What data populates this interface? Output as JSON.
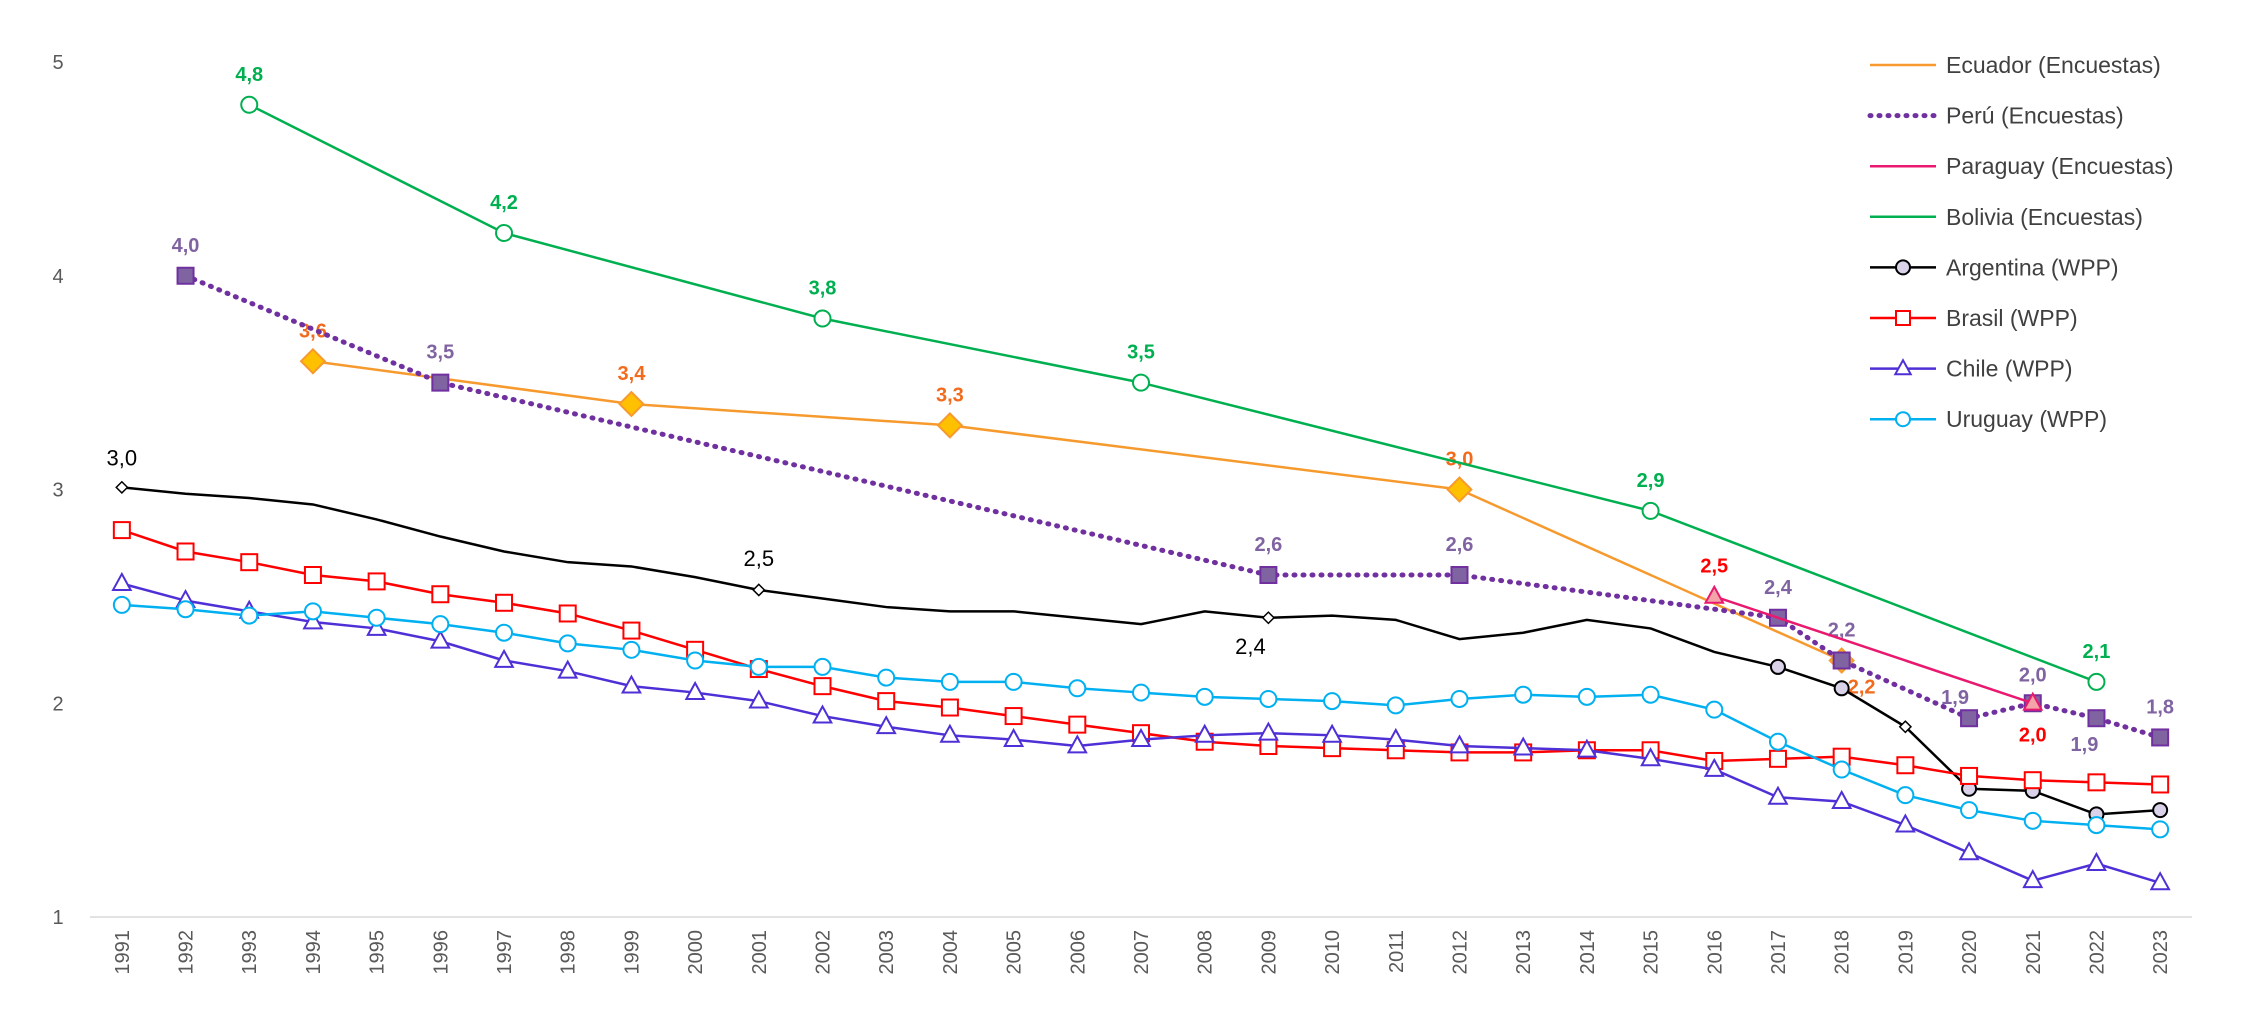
{
  "chart_data": {
    "type": "line",
    "xlim": [
      1990.5,
      2023.5
    ],
    "xticks": [
      1991,
      1992,
      1993,
      1994,
      1995,
      1996,
      1997,
      1998,
      1999,
      2000,
      2001,
      2002,
      2003,
      2004,
      2005,
      2006,
      2007,
      2008,
      2009,
      2010,
      2011,
      2012,
      2013,
      2014,
      2015,
      2016,
      2017,
      2018,
      2019,
      2020,
      2021,
      2022,
      2023
    ],
    "ylim": [
      1,
      5
    ],
    "yticks": [
      1,
      2,
      3,
      4,
      5
    ],
    "grid": false,
    "legend": "top-right",
    "series": [
      {
        "name": "Ecuador (Encuestas)",
        "color": "#F79A2E",
        "marker": "diamond",
        "marker_fill": "#FFC000",
        "label_color": "#F26B1D",
        "x": [
          1994,
          1999,
          2004,
          2012,
          2018
        ],
        "values": [
          3.6,
          3.4,
          3.3,
          3.0,
          2.2
        ],
        "value_labels": [
          "3,6",
          "3,4",
          "3,3",
          "3,0",
          "2,2"
        ]
      },
      {
        "name": "Perú (Encuestas)",
        "color": "#7030A0",
        "dash": "dotted",
        "marker": "square",
        "marker_fill": "#8064A2",
        "label_color": "#8064A2",
        "x": [
          1992,
          1996,
          2009,
          2012,
          2017,
          2018,
          2020,
          2021,
          2022,
          2023
        ],
        "values": [
          4.0,
          3.5,
          2.6,
          2.6,
          2.4,
          2.2,
          1.93,
          2.0,
          1.93,
          1.84
        ],
        "value_labels": [
          "4,0",
          "3,5",
          "2,6",
          "2,6",
          "2,4",
          "2,2",
          "1,9",
          "2,0",
          "1,9",
          "1,8"
        ]
      },
      {
        "name": "Paraguay (Encuestas)",
        "color": "#E8196E",
        "marker": "triangle",
        "marker_fill": "#F4A3A8",
        "label_color": "#FF0000",
        "x": [
          2016,
          2021
        ],
        "values": [
          2.5,
          2.0
        ],
        "value_labels": [
          "2,5",
          "2,0"
        ]
      },
      {
        "name": "Bolivia (Encuestas)",
        "color": "#00B050",
        "marker": "circle",
        "marker_fill": "#ffffff",
        "label_color": "#00B050",
        "x": [
          1993,
          1997,
          2002,
          2007,
          2015,
          2022
        ],
        "values": [
          4.8,
          4.2,
          3.8,
          3.5,
          2.9,
          2.1
        ],
        "value_labels": [
          "4,8",
          "4,2",
          "3,8",
          "3,5",
          "2,9",
          "2,1"
        ]
      },
      {
        "name": "Argentina (WPP)",
        "color": "#000000",
        "marker": "circle",
        "marker_fill": "#D9D2E9",
        "label_color": "#000000",
        "x": [
          1991,
          1992,
          1993,
          1994,
          1995,
          1996,
          1997,
          1998,
          1999,
          2000,
          2001,
          2002,
          2003,
          2004,
          2005,
          2006,
          2007,
          2008,
          2009,
          2010,
          2011,
          2012,
          2013,
          2014,
          2015,
          2016,
          2017,
          2018,
          2019,
          2020,
          2021,
          2022,
          2023
        ],
        "values": [
          3.01,
          2.98,
          2.96,
          2.93,
          2.86,
          2.78,
          2.71,
          2.66,
          2.64,
          2.59,
          2.53,
          2.49,
          2.45,
          2.43,
          2.43,
          2.4,
          2.37,
          2.43,
          2.4,
          2.41,
          2.39,
          2.3,
          2.33,
          2.39,
          2.35,
          2.24,
          2.17,
          2.07,
          1.89,
          1.6,
          1.59,
          1.48,
          1.5
        ],
        "value_labels": [
          "3,0",
          null,
          null,
          null,
          null,
          null,
          null,
          null,
          null,
          null,
          "2,5",
          null,
          null,
          null,
          null,
          null,
          null,
          null,
          "2,4",
          null,
          null,
          null,
          null,
          null,
          null,
          null,
          null,
          null,
          null,
          null,
          null,
          null,
          null
        ]
      },
      {
        "name": "Brasil (WPP)",
        "color": "#FF0000",
        "marker": "square",
        "marker_fill": "#ffffff",
        "x": [
          1991,
          1992,
          1993,
          1994,
          1995,
          1996,
          1997,
          1998,
          1999,
          2000,
          2001,
          2002,
          2003,
          2004,
          2005,
          2006,
          2007,
          2008,
          2009,
          2010,
          2011,
          2012,
          2013,
          2014,
          2015,
          2016,
          2017,
          2018,
          2019,
          2020,
          2021,
          2022,
          2023
        ],
        "values": [
          2.81,
          2.71,
          2.66,
          2.6,
          2.57,
          2.51,
          2.47,
          2.42,
          2.34,
          2.25,
          2.16,
          2.08,
          2.01,
          1.98,
          1.94,
          1.9,
          1.86,
          1.82,
          1.8,
          1.79,
          1.78,
          1.77,
          1.77,
          1.78,
          1.78,
          1.73,
          1.74,
          1.75,
          1.71,
          1.66,
          1.64,
          1.63,
          1.62
        ]
      },
      {
        "name": "Chile (WPP)",
        "color": "#4F2FD6",
        "marker": "triangle",
        "marker_fill": "#ffffff",
        "x": [
          1991,
          1992,
          1993,
          1994,
          1995,
          1996,
          1997,
          1998,
          1999,
          2000,
          2001,
          2002,
          2003,
          2004,
          2005,
          2006,
          2007,
          2008,
          2009,
          2010,
          2011,
          2012,
          2013,
          2014,
          2015,
          2016,
          2017,
          2018,
          2019,
          2020,
          2021,
          2022,
          2023
        ],
        "values": [
          2.56,
          2.48,
          2.43,
          2.38,
          2.35,
          2.29,
          2.2,
          2.15,
          2.08,
          2.05,
          2.01,
          1.94,
          1.89,
          1.85,
          1.83,
          1.8,
          1.83,
          1.85,
          1.86,
          1.85,
          1.83,
          1.8,
          1.79,
          1.78,
          1.74,
          1.69,
          1.56,
          1.54,
          1.43,
          1.3,
          1.17,
          1.25,
          1.16
        ]
      },
      {
        "name": "Uruguay (WPP)",
        "color": "#00B0F0",
        "marker": "circle",
        "marker_fill": "#ffffff",
        "x": [
          1991,
          1992,
          1993,
          1994,
          1995,
          1996,
          1997,
          1998,
          1999,
          2000,
          2001,
          2002,
          2003,
          2004,
          2005,
          2006,
          2007,
          2008,
          2009,
          2010,
          2011,
          2012,
          2013,
          2014,
          2015,
          2016,
          2017,
          2018,
          2019,
          2020,
          2021,
          2022,
          2023
        ],
        "values": [
          2.46,
          2.44,
          2.41,
          2.43,
          2.4,
          2.37,
          2.33,
          2.28,
          2.25,
          2.2,
          2.17,
          2.17,
          2.12,
          2.1,
          2.1,
          2.07,
          2.05,
          2.03,
          2.02,
          2.01,
          1.99,
          2.02,
          2.04,
          2.03,
          2.04,
          1.97,
          1.82,
          1.69,
          1.57,
          1.5,
          1.45,
          1.43,
          1.41
        ]
      }
    ]
  }
}
